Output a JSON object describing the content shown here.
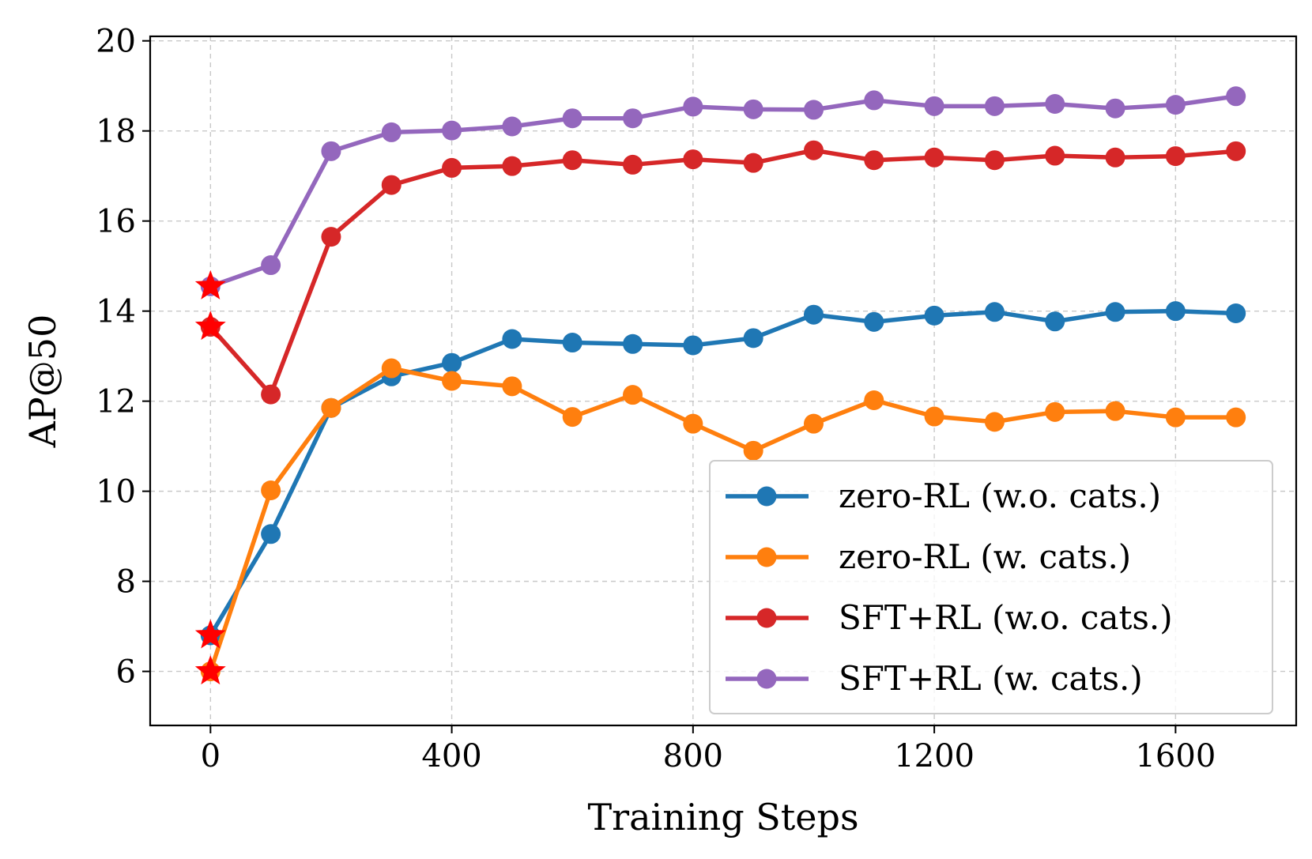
{
  "chart_data": {
    "type": "line",
    "title": "",
    "xlabel": "Training Steps",
    "ylabel": "AP@50",
    "xlim": [
      -100,
      1800
    ],
    "ylim": [
      4.8,
      20.1
    ],
    "xticks": [
      0,
      400,
      800,
      1200,
      1600
    ],
    "yticks": [
      6,
      8,
      10,
      12,
      14,
      16,
      18,
      20
    ],
    "grid": true,
    "legend_position": "bottom-right",
    "x": [
      0,
      100,
      200,
      300,
      400,
      500,
      600,
      700,
      800,
      900,
      1000,
      1100,
      1200,
      1300,
      1400,
      1500,
      1600,
      1700
    ],
    "series": [
      {
        "name": "zero-RL (w.o. cats.)",
        "color": "#1f77b4",
        "values": [
          6.8,
          9.05,
          11.85,
          12.55,
          12.85,
          13.38,
          13.3,
          13.27,
          13.24,
          13.4,
          13.92,
          13.76,
          13.9,
          13.98,
          13.77,
          13.98,
          14.0,
          13.95
        ],
        "start_star": 6.8
      },
      {
        "name": "zero-RL (w. cats.)",
        "color": "#ff7f0e",
        "values": [
          6.0,
          10.02,
          11.85,
          12.73,
          12.45,
          12.33,
          11.65,
          12.14,
          11.5,
          10.9,
          11.5,
          12.02,
          11.66,
          11.54,
          11.76,
          11.78,
          11.64,
          11.64
        ],
        "start_star": 6.0
      },
      {
        "name": "SFT+RL (w.o. cats.)",
        "color": "#d62728",
        "values": [
          13.65,
          12.15,
          15.65,
          16.8,
          17.18,
          17.22,
          17.35,
          17.25,
          17.37,
          17.29,
          17.57,
          17.35,
          17.41,
          17.35,
          17.45,
          17.41,
          17.44,
          17.55
        ],
        "start_star": 13.65
      },
      {
        "name": "SFT+RL (w. cats.)",
        "color": "#9467bd",
        "values": [
          14.55,
          15.02,
          17.55,
          17.97,
          18.01,
          18.1,
          18.28,
          18.28,
          18.54,
          18.48,
          18.47,
          18.68,
          18.55,
          18.55,
          18.6,
          18.5,
          18.58,
          18.77
        ],
        "start_star": 14.55
      }
    ],
    "star_color": "#ff0000"
  }
}
